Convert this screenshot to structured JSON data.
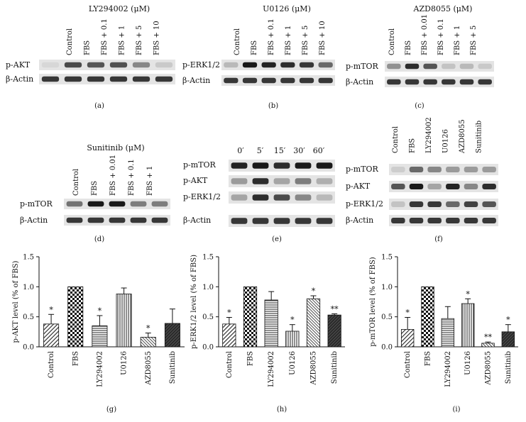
{
  "blots": [
    {
      "title": "LY294002 (μM)",
      "lanes": [
        "Control",
        "FBS",
        "FBS + 0.1",
        "FBS + 1",
        "FBS + 5",
        "FBS + 10"
      ],
      "rows": [
        {
          "label": "p-AKT",
          "intensity": [
            0.05,
            0.75,
            0.7,
            0.72,
            0.45,
            0.12
          ]
        },
        {
          "label": "β-Actin",
          "intensity": [
            0.85,
            0.85,
            0.85,
            0.85,
            0.85,
            0.85
          ]
        }
      ],
      "caption": "(a)"
    },
    {
      "title": "U0126 (μM)",
      "lanes": [
        "Control",
        "FBS",
        "FBS + 0.1",
        "FBS + 1",
        "FBS + 5",
        "FBS + 10"
      ],
      "rows": [
        {
          "label": "p-ERK1/2",
          "intensity": [
            0.2,
            1.0,
            0.95,
            0.9,
            0.85,
            0.6
          ]
        },
        {
          "label": "β-Actin",
          "intensity": [
            0.85,
            0.85,
            0.85,
            0.85,
            0.85,
            0.85
          ]
        }
      ],
      "caption": "(b)"
    },
    {
      "title": "AZD8055 (μM)",
      "lanes": [
        "Control",
        "FBS",
        "FBS + 0.01",
        "FBS + 0.1",
        "FBS + 1",
        "FBS + 5"
      ],
      "rows": [
        {
          "label": "p-mTOR",
          "intensity": [
            0.4,
            0.9,
            0.7,
            0.15,
            0.2,
            0.12
          ]
        },
        {
          "label": "β-Actin",
          "intensity": [
            0.85,
            0.85,
            0.85,
            0.85,
            0.85,
            0.85
          ]
        }
      ],
      "caption": "(c)"
    },
    {
      "title": "Sunitinib (μM)",
      "lanes": [
        "Control",
        "FBS",
        "FBS + 0.01",
        "FBS + 0.1",
        "FBS + 1"
      ],
      "rows": [
        {
          "label": "p-mTOR",
          "intensity": [
            0.55,
            1.0,
            1.0,
            0.5,
            0.5
          ]
        },
        {
          "label": "β-Actin",
          "intensity": [
            0.85,
            0.85,
            0.85,
            0.85,
            0.85
          ]
        }
      ],
      "caption": "(d)"
    },
    {
      "title": "",
      "lanes": [
        "0′",
        "5′",
        "15′",
        "30′",
        "60′"
      ],
      "rows": [
        {
          "label": "p-mTOR",
          "intensity": [
            0.95,
            1.0,
            0.9,
            1.0,
            1.0
          ]
        },
        {
          "label": "p-AKT",
          "intensity": [
            0.35,
            0.9,
            0.3,
            0.5,
            0.25
          ]
        },
        {
          "label": "p-ERK1/2",
          "intensity": [
            0.3,
            0.9,
            0.75,
            0.45,
            0.2
          ]
        },
        {
          "label": "β-Actin",
          "intensity": [
            0.85,
            0.85,
            0.85,
            0.85,
            0.85
          ]
        }
      ],
      "caption": "(e)"
    },
    {
      "title": "",
      "lanes": [
        "Control",
        "FBS",
        "LY294002",
        "U0126",
        "AZD8055",
        "Sunitinib"
      ],
      "rows": [
        {
          "label": "p-mTOR",
          "intensity": [
            0.1,
            0.6,
            0.45,
            0.35,
            0.35,
            0.35
          ]
        },
        {
          "label": "p-AKT",
          "intensity": [
            0.7,
            1.0,
            0.3,
            0.95,
            0.45,
            0.9
          ]
        },
        {
          "label": "p-ERK1/2",
          "intensity": [
            0.15,
            0.85,
            0.85,
            0.6,
            0.8,
            0.7
          ]
        },
        {
          "label": "β-Actin",
          "intensity": [
            0.85,
            0.85,
            0.85,
            0.85,
            0.85,
            0.85
          ]
        }
      ],
      "caption": "(f)"
    }
  ],
  "chart_data": [
    {
      "type": "bar",
      "ylabel": "p-AKT level (% of FBS)",
      "ylim": [
        0,
        1.5
      ],
      "yticks": [
        "0.0",
        "0.5",
        "1.0",
        "1.5"
      ],
      "categories": [
        "Control",
        "FBS",
        "LY294002",
        "U0126",
        "AZD8055",
        "Sunitinib"
      ],
      "values": [
        0.38,
        1.0,
        0.35,
        0.88,
        0.16,
        0.39
      ],
      "errors": [
        0.16,
        0,
        0.17,
        0.1,
        0.07,
        0.24
      ],
      "marks": [
        "*",
        "",
        "*",
        "",
        "*",
        ""
      ],
      "caption": "(g)"
    },
    {
      "type": "bar",
      "ylabel": "p-ERK1/2 level (% of FBS)",
      "ylim": [
        0,
        1.5
      ],
      "yticks": [
        "0.0",
        "0.5",
        "1.0",
        "1.5"
      ],
      "categories": [
        "Control",
        "FBS",
        "LY294002",
        "U0126",
        "AZD8055",
        "Sunitinib"
      ],
      "values": [
        0.38,
        1.0,
        0.78,
        0.26,
        0.8,
        0.53
      ],
      "errors": [
        0.11,
        0,
        0.14,
        0.11,
        0.05,
        0.02
      ],
      "marks": [
        "*",
        "",
        "",
        "*",
        "*",
        "**"
      ],
      "caption": "(h)"
    },
    {
      "type": "bar",
      "ylabel": "p-mTOR level (% of FBS)",
      "ylim": [
        0,
        1.5
      ],
      "yticks": [
        "0.0",
        "0.5",
        "1.0",
        "1.5"
      ],
      "categories": [
        "Control",
        "FBS",
        "LY294002",
        "U0126",
        "AZD8055",
        "Sunitinib"
      ],
      "values": [
        0.29,
        1.0,
        0.47,
        0.72,
        0.06,
        0.25
      ],
      "errors": [
        0.2,
        0,
        0.2,
        0.08,
        0.02,
        0.12
      ],
      "marks": [
        "*",
        "",
        "",
        "*",
        "**",
        "*"
      ],
      "caption": "(i)"
    }
  ]
}
